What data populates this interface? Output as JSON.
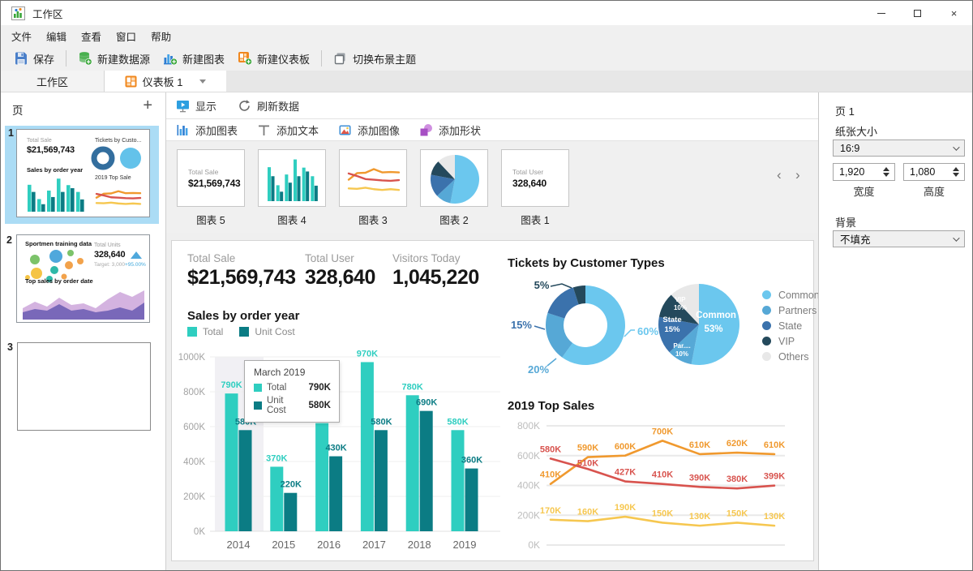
{
  "window": {
    "title": "工作区"
  },
  "menu": {
    "items": [
      "文件",
      "编辑",
      "查看",
      "窗口",
      "帮助"
    ]
  },
  "toolbar": {
    "save": "保存",
    "new_datasource": "新建数据源",
    "new_chart": "新建图表",
    "new_dashboard": "新建仪表板",
    "switch_theme": "切换布景主题"
  },
  "tabs": {
    "workspace": "工作区",
    "dashboard": "仪表板 1"
  },
  "pages_panel": {
    "title": "页",
    "page1": {
      "num": "1",
      "kpi_label": "Total Sale",
      "kpi_value": "$21,569,743",
      "donut_title": "Tickets by Custo...",
      "bar_title": "Sales by order year",
      "line_title": "2019 Top Sale"
    },
    "page2": {
      "num": "2",
      "bubble_title": "Sportmen training data",
      "kpi_label": "Total Units",
      "kpi_value": "328,640",
      "target": "Target: 3,000",
      "delta": "+95.00%",
      "area_title": "Top sales by order date"
    },
    "page3": {
      "num": "3"
    }
  },
  "designer_bar": {
    "show": "显示",
    "refresh": "刷新数据"
  },
  "insert_bar": {
    "add_chart": "添加图表",
    "add_text": "添加文本",
    "add_image": "添加图像",
    "add_shape": "添加形状"
  },
  "gallery": {
    "items": [
      {
        "label": "图表 5",
        "kind": "kpi",
        "kpi_label": "Total Sale",
        "kpi_value": "$21,569,743"
      },
      {
        "label": "图表 4",
        "kind": "bar"
      },
      {
        "label": "图表 3",
        "kind": "line"
      },
      {
        "label": "图表 2",
        "kind": "pie"
      },
      {
        "label": "图表 1",
        "kind": "kpi",
        "kpi_label": "Total User",
        "kpi_value": "328,640"
      }
    ]
  },
  "dashboard": {
    "kpis": [
      {
        "label": "Total Sale",
        "value": "$21,569,743"
      },
      {
        "label": "Total User",
        "value": "328,640"
      },
      {
        "label": "Visitors Today",
        "value": "1,045,220"
      }
    ],
    "bar_title": "Sales by order year",
    "tickets_title": "Tickets by Customer Types",
    "topsales_title": "2019 Top Sales"
  },
  "tooltip": {
    "title": "March 2019",
    "rows": [
      {
        "name": "Total",
        "value": "790K",
        "color_key": "teal"
      },
      {
        "name": "Unit Cost",
        "value": "580K",
        "color_key": "teal_dark"
      }
    ]
  },
  "chart_data": [
    {
      "type": "bar",
      "title": "Sales by order year",
      "categories": [
        "2014",
        "2015",
        "2016",
        "2017",
        "2018",
        "2019"
      ],
      "series": [
        {
          "name": "Total",
          "color_key": "teal",
          "values_k": [
            790,
            370,
            620,
            970,
            780,
            580
          ]
        },
        {
          "name": "Unit Cost",
          "color_key": "teal_dark",
          "values_k": [
            580,
            220,
            430,
            580,
            690,
            360
          ]
        }
      ],
      "ylim_k": [
        0,
        1000
      ],
      "yticks": [
        "0K",
        "200K",
        "400K",
        "600K",
        "800K",
        "1000K"
      ],
      "highlighted_category": "2014",
      "legend_position": "top-left",
      "grid": true
    },
    {
      "type": "donut",
      "title": "Tickets by Customer Types",
      "labels": [
        "Common",
        "Partners",
        "State",
        "VIP"
      ],
      "values_pct": [
        60,
        20,
        15,
        5
      ],
      "color_keys": [
        "blue_common",
        "blue_partners",
        "blue_state",
        "blue_vip"
      ]
    },
    {
      "type": "pie",
      "title": "Tickets by Customer Types",
      "slices": [
        {
          "name": "Common",
          "pct": 53,
          "display": "Common",
          "color_key": "blue_common"
        },
        {
          "name": "Partners",
          "pct": 10,
          "display": "Par....",
          "color_key": "blue_partners"
        },
        {
          "name": "State",
          "pct": 15,
          "display": "State",
          "color_key": "blue_state"
        },
        {
          "name": "VIP",
          "pct": 10,
          "display": "VIP",
          "color_key": "blue_vip"
        },
        {
          "name": "Others",
          "pct": 12,
          "display": "",
          "color_key": "gray_others"
        }
      ],
      "legend": [
        "Common",
        "Partners",
        "State",
        "VIP",
        "Others"
      ],
      "legend_color_keys": [
        "blue_common",
        "blue_partners",
        "blue_state",
        "blue_vip",
        "gray_others"
      ],
      "legend_position": "right"
    },
    {
      "type": "line",
      "title": "2019 Top Sales",
      "x_points": 7,
      "yticks": [
        "0K",
        "200K",
        "400K",
        "600K",
        "800K"
      ],
      "ylim_k": [
        0,
        800
      ],
      "series": [
        {
          "name": "orange-series",
          "color_key": "orange",
          "values_k": [
            410,
            590,
            600,
            700,
            610,
            620,
            610
          ]
        },
        {
          "name": "red-series",
          "color_key": "red",
          "values_k": [
            580,
            510,
            427,
            410,
            390,
            380,
            399
          ]
        },
        {
          "name": "yellow-series",
          "color_key": "yellow",
          "values_k": [
            170,
            160,
            190,
            150,
            130,
            150,
            130
          ]
        }
      ],
      "grid": true
    }
  ],
  "properties_panel": {
    "page_title": "页 1",
    "paper_size_label": "纸张大小",
    "paper_size_value": "16:9",
    "width_value": "1,920",
    "height_value": "1,080",
    "width_label": "宽度",
    "height_label": "高度",
    "background_label": "背景",
    "background_value": "不填充"
  },
  "colors": {
    "teal": "#2FCEC0",
    "teal_dark": "#0B7C84",
    "orange": "#F0992E",
    "red": "#D8534E",
    "yellow": "#F6C750",
    "blue_common": "#6BC7EE",
    "blue_partners": "#56A8D6",
    "blue_state": "#3B72AC",
    "blue_vip": "#24495C",
    "gray_others": "#E8E8E8",
    "purple_light": "#C9A0D8",
    "purple_dark": "#6F5FB5",
    "accent_green": "#3AA63A",
    "accent_blue": "#2D7DD2",
    "accent_orange": "#F0871E"
  }
}
